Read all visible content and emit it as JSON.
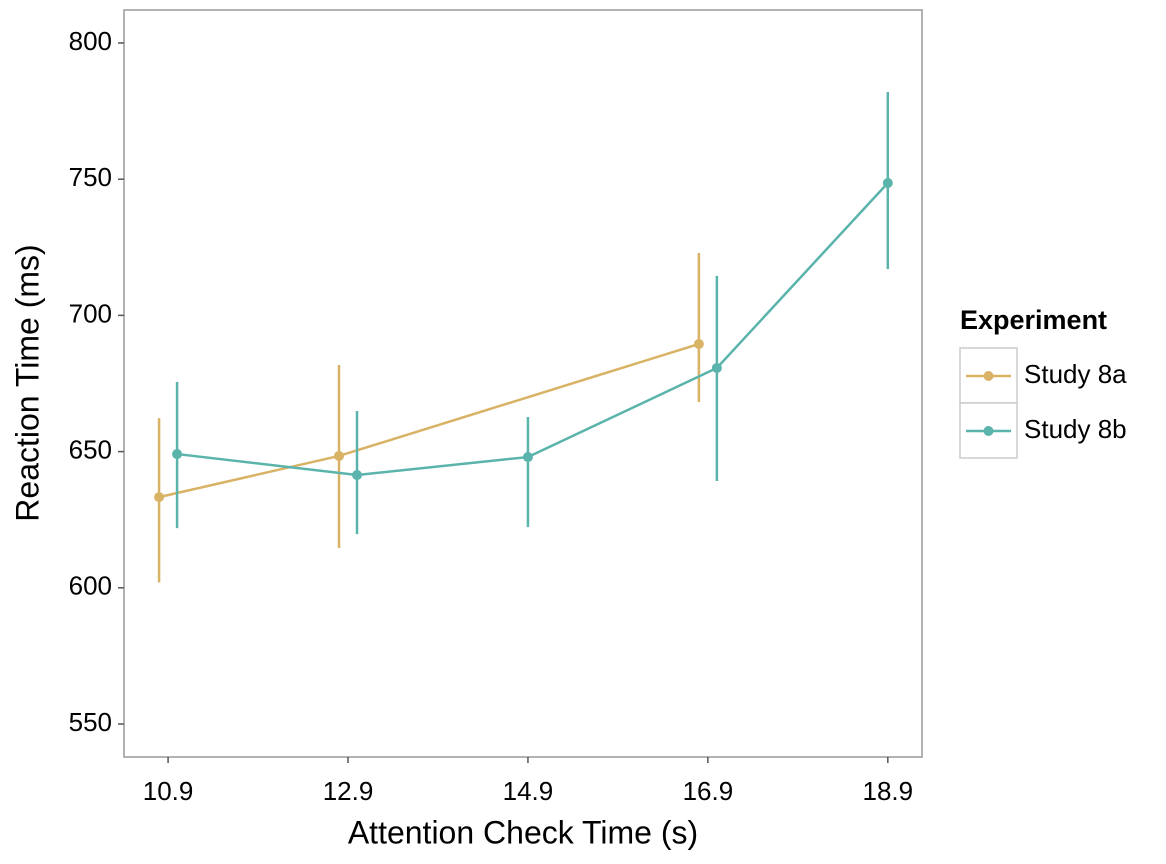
{
  "chart_data": {
    "type": "line",
    "xlabel": "Attention Check Time (s)",
    "ylabel": "Reaction Time (ms)",
    "legend_title": "Experiment",
    "legend_position": "right",
    "xlim": [
      10.41,
      19.28
    ],
    "xticks": [
      10.9,
      12.9,
      14.9,
      16.9,
      18.9
    ],
    "ylim": [
      537.9,
      812.1
    ],
    "yticks": [
      550,
      600,
      650,
      700,
      750,
      800
    ],
    "grid": false,
    "series": [
      {
        "name": "Study 8a",
        "color": "#d9b365",
        "x": [
          10.9,
          12.9,
          16.9
        ],
        "values": [
          633.3,
          648.4,
          689.5
        ],
        "lower": [
          602,
          614.6,
          668.2
        ],
        "upper": [
          662.3,
          681.8,
          722.9
        ]
      },
      {
        "name": "Study 8b",
        "color": "#5ab4ac",
        "x": [
          10.9,
          12.9,
          14.9,
          16.9,
          18.9
        ],
        "values": [
          649.1,
          641.4,
          648.0,
          680.7,
          748.6
        ],
        "lower": [
          621.9,
          619.7,
          622.3,
          639.2,
          717.0
        ],
        "upper": [
          675.6,
          664.9,
          662.7,
          714.5,
          782.0
        ]
      }
    ]
  }
}
